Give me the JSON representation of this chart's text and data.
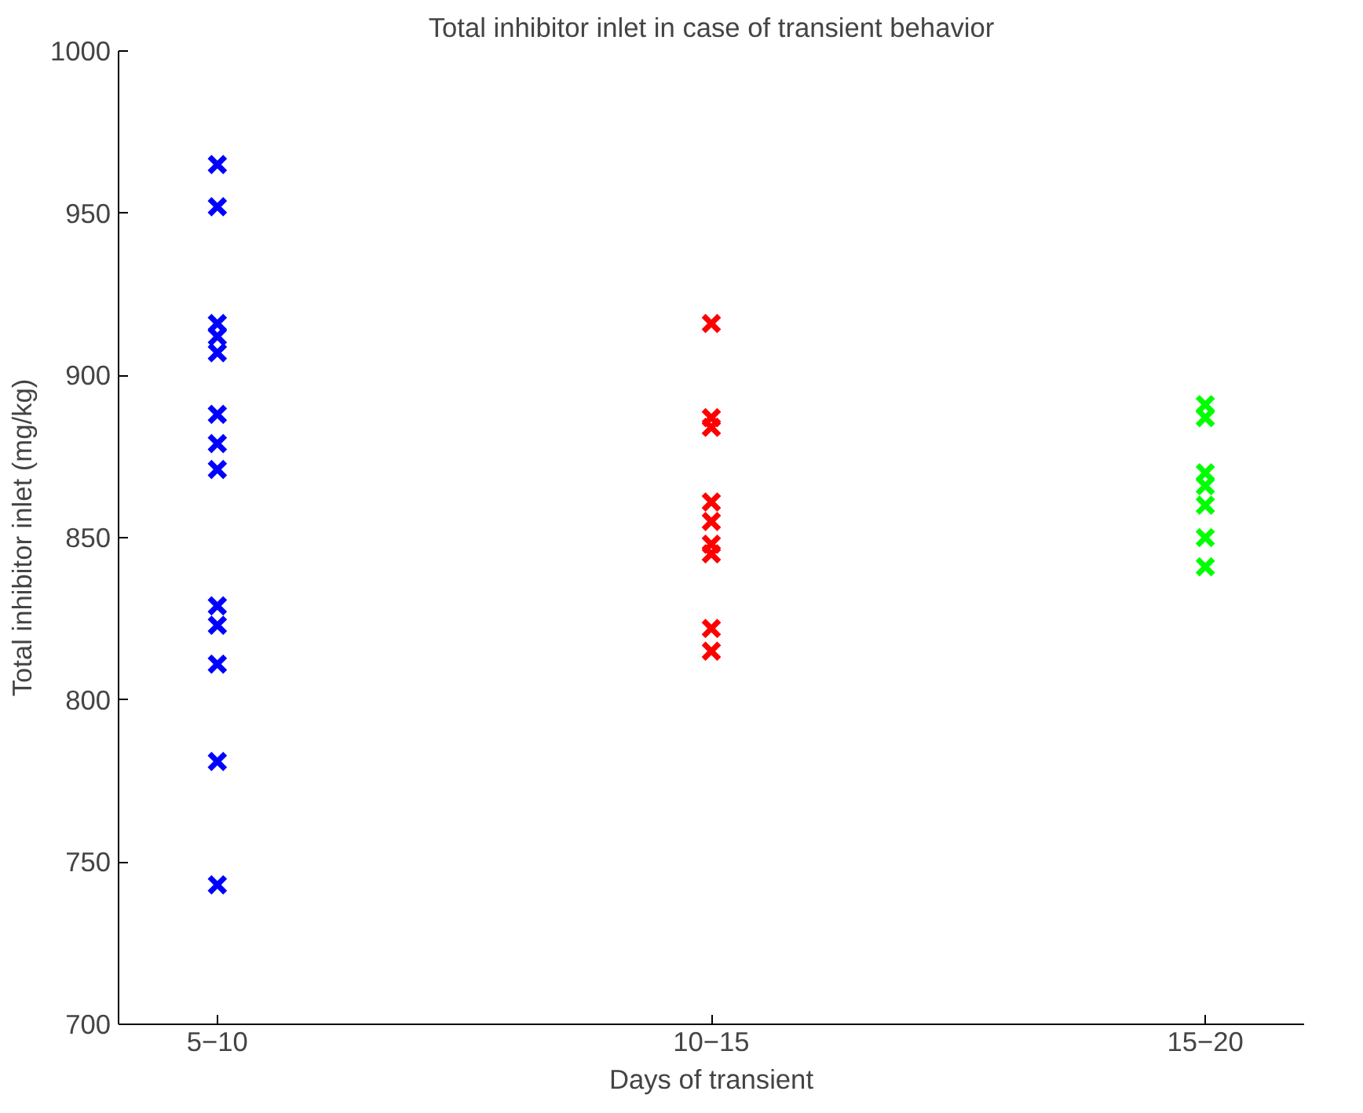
{
  "chart_data": {
    "type": "scatter",
    "title": "Total inhibitor inlet in case of transient behavior",
    "xlabel": "Days of transient",
    "ylabel": "Total inhibitor inlet (mg/kg)",
    "categories": [
      "5−10",
      "10−15",
      "15−20"
    ],
    "ylim": [
      700,
      1000
    ],
    "yticks": [
      700,
      750,
      800,
      850,
      900,
      950,
      1000
    ],
    "grid": false,
    "marker": "cross",
    "series": [
      {
        "color": "#0000ff",
        "x": [
          "5−10",
          "5−10",
          "5−10",
          "5−10",
          "5−10",
          "5−10",
          "5−10",
          "5−10",
          "5−10",
          "5−10",
          "5−10",
          "5−10",
          "5−10"
        ],
        "values": [
          965,
          952,
          916,
          912,
          907,
          888,
          879,
          871,
          829,
          823,
          811,
          781,
          743
        ]
      },
      {
        "color": "#ff0000",
        "x": [
          "10−15",
          "10−15",
          "10−15",
          "10−15",
          "10−15",
          "10−15",
          "10−15",
          "10−15",
          "10−15"
        ],
        "values": [
          916,
          887,
          884,
          861,
          855,
          848,
          845,
          822,
          815
        ]
      },
      {
        "color": "#00ff00",
        "x": [
          "15−20",
          "15−20",
          "15−20",
          "15−20",
          "15−20",
          "15−20",
          "15−20"
        ],
        "values": [
          891,
          887,
          870,
          866,
          860,
          850,
          841
        ]
      }
    ]
  }
}
